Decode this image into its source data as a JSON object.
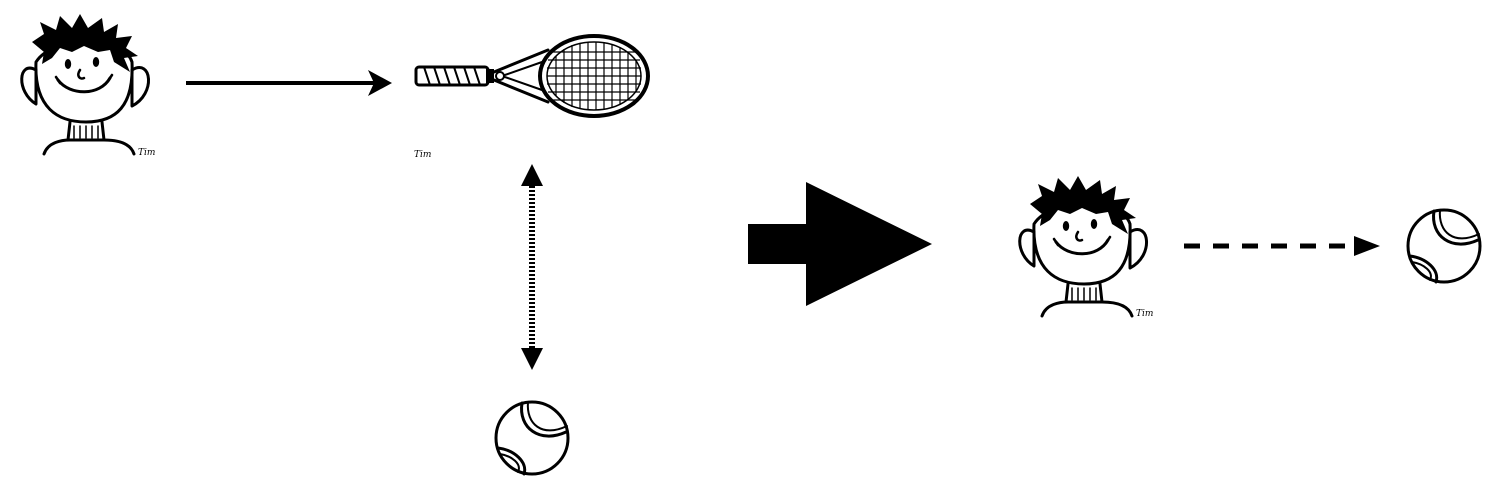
{
  "diagram": {
    "nodes": [
      {
        "id": "boy-left",
        "kind": "boy",
        "signature": "Tim"
      },
      {
        "id": "racket",
        "kind": "tennis-racket",
        "signature": "Tim"
      },
      {
        "id": "ball-bottom",
        "kind": "tennis-ball"
      },
      {
        "id": "boy-right",
        "kind": "boy",
        "signature": "Tim"
      },
      {
        "id": "ball-right",
        "kind": "tennis-ball"
      }
    ],
    "edges": [
      {
        "from": "boy-left",
        "to": "racket",
        "style": "solid",
        "direction": "forward"
      },
      {
        "from": "racket",
        "to": "ball-bottom",
        "style": "dotted",
        "direction": "both"
      },
      {
        "from": "left-group",
        "to": "right-group",
        "style": "block-arrow",
        "direction": "forward"
      },
      {
        "from": "boy-right",
        "to": "ball-right",
        "style": "dashed",
        "direction": "forward"
      }
    ],
    "colors": {
      "ink": "#000000",
      "background": "#ffffff"
    }
  }
}
